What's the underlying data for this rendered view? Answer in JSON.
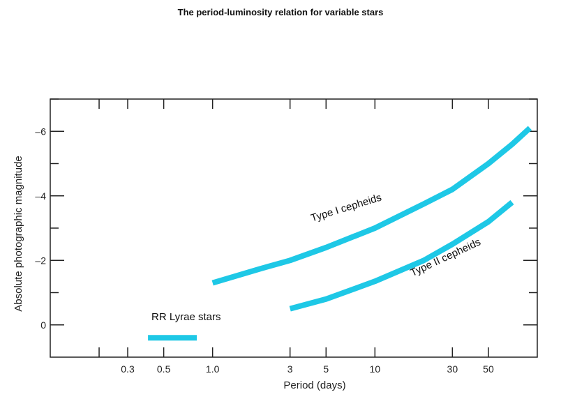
{
  "chart_data": {
    "type": "line",
    "title": "The period-luminosity relation for variable stars",
    "xlabel": "Period (days)",
    "ylabel": "Absolute photographic magnitude",
    "x_scale": "log",
    "xlim": [
      0.1,
      100
    ],
    "ylim": [
      1,
      -7
    ],
    "y_inverted": true,
    "x_ticks": [
      0.3,
      0.5,
      1.0,
      3,
      5,
      10,
      30,
      50
    ],
    "x_tick_labels": [
      "0.3",
      "0.5",
      "1.0",
      "3",
      "5",
      "10",
      "30",
      "50"
    ],
    "y_ticks": [
      -6,
      -4,
      -2,
      0
    ],
    "y_tick_labels": [
      "–6",
      "–4",
      "–2",
      "0"
    ],
    "grid": false,
    "legend": "none",
    "line_color": "#1ec8e6",
    "series": [
      {
        "name": "Type I cepheids",
        "x": [
          1.0,
          2.0,
          3.0,
          5.0,
          10,
          20,
          30,
          50,
          70,
          90
        ],
        "y": [
          -1.3,
          -1.75,
          -2.0,
          -2.4,
          -3.0,
          -3.75,
          -4.2,
          -5.0,
          -5.6,
          -6.1
        ]
      },
      {
        "name": "Type II cepheids",
        "x": [
          3.0,
          5.0,
          10,
          20,
          30,
          50,
          70
        ],
        "y": [
          -0.5,
          -0.8,
          -1.35,
          -2.0,
          -2.5,
          -3.2,
          -3.8
        ]
      },
      {
        "name": "RR Lyrae stars",
        "x": [
          0.4,
          0.8
        ],
        "y": [
          0.4,
          0.4
        ]
      }
    ]
  }
}
